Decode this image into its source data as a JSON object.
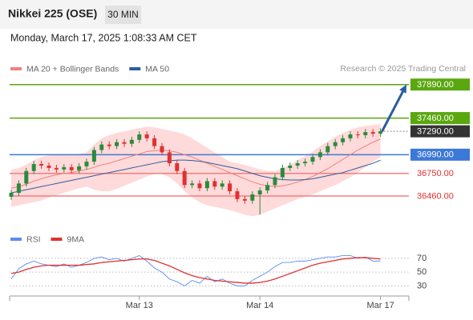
{
  "header": {
    "title": "Nikkei 225 (OSE)",
    "interval": "30 MIN",
    "timestamp": "Monday, March 17, 2025 1:08:33 AM CET"
  },
  "source": "Research © 2025 Trading Central",
  "chart_data": [
    {
      "type": "candlestick",
      "categories": [
        null,
        null,
        null,
        null,
        null,
        null,
        null,
        null,
        null,
        null,
        null,
        null,
        null,
        null,
        null,
        null,
        null,
        "Mar 13",
        null,
        null,
        null,
        null,
        null,
        null,
        null,
        null,
        null,
        null,
        null,
        null,
        null,
        null,
        null,
        "Mar 14",
        null,
        null,
        null,
        null,
        null,
        null,
        null,
        null,
        null,
        null,
        null,
        null,
        null,
        null,
        null,
        "Mar 17"
      ],
      "open": [
        36450,
        36500,
        36620,
        36780,
        36870,
        36850,
        36820,
        36800,
        36830,
        36790,
        36840,
        36900,
        37050,
        37120,
        37100,
        37150,
        37130,
        37180,
        37250,
        37200,
        37100,
        37020,
        36880,
        36780,
        36600,
        36620,
        36560,
        36650,
        36580,
        36620,
        36520,
        36420,
        36400,
        36480,
        36530,
        36600,
        36700,
        36820,
        36850,
        36880,
        36900,
        36960,
        37020,
        37100,
        37150,
        37200,
        37250,
        37240,
        37280,
        37260
      ],
      "high": [
        36540,
        36660,
        36820,
        36910,
        36910,
        36890,
        36860,
        36870,
        36870,
        36880,
        36940,
        37090,
        37160,
        37160,
        37190,
        37190,
        37220,
        37290,
        37290,
        37240,
        37140,
        37060,
        36920,
        36820,
        36660,
        36660,
        36690,
        36690,
        36660,
        36660,
        36560,
        36460,
        36520,
        36570,
        36640,
        36740,
        36860,
        36890,
        36920,
        36940,
        37000,
        37060,
        37140,
        37190,
        37240,
        37290,
        37290,
        37320,
        37320,
        37330
      ],
      "low": [
        36410,
        36460,
        36580,
        36740,
        36810,
        36780,
        36760,
        36760,
        36750,
        36750,
        36800,
        36860,
        37010,
        37060,
        37060,
        37090,
        37090,
        37140,
        37160,
        37060,
        36980,
        36840,
        36740,
        36560,
        36560,
        36520,
        36520,
        36540,
        36540,
        36480,
        36380,
        36360,
        36360,
        36220,
        36490,
        36560,
        36660,
        36780,
        36810,
        36840,
        36860,
        36920,
        36980,
        37060,
        37110,
        37160,
        37200,
        37200,
        37220,
        37220
      ],
      "close": [
        36500,
        36620,
        36780,
        36870,
        36850,
        36820,
        36800,
        36830,
        36790,
        36840,
        36900,
        37050,
        37120,
        37100,
        37150,
        37130,
        37180,
        37250,
        37200,
        37100,
        37020,
        36880,
        36780,
        36600,
        36620,
        36560,
        36650,
        36580,
        36620,
        36520,
        36420,
        36400,
        36480,
        36530,
        36600,
        36700,
        36820,
        36850,
        36880,
        36900,
        36960,
        37020,
        37100,
        37150,
        37200,
        37250,
        37240,
        37280,
        37260,
        37290
      ],
      "up_color": "#2b8a3e",
      "down_color": "#e03131",
      "bands": {
        "color": "#ffd3d3",
        "upper": [
          36800,
          36820,
          36860,
          36920,
          36960,
          36980,
          36990,
          37000,
          36990,
          37000,
          37020,
          37120,
          37200,
          37240,
          37270,
          37290,
          37310,
          37330,
          37350,
          37340,
          37320,
          37300,
          37280,
          37250,
          37200,
          37140,
          37080,
          37020,
          36960,
          36900,
          36880,
          36860,
          36830,
          36800,
          36780,
          36780,
          36820,
          36860,
          36920,
          36970,
          37030,
          37100,
          37160,
          37220,
          37270,
          37310,
          37340,
          37360,
          37370,
          37380
        ],
        "lower": [
          36320,
          36340,
          36360,
          36380,
          36400,
          36440,
          36470,
          36500,
          36530,
          36560,
          36580,
          36540,
          36520,
          36520,
          36550,
          36590,
          36630,
          36670,
          36710,
          36740,
          36740,
          36700,
          36620,
          36520,
          36440,
          36380,
          36340,
          36320,
          36300,
          36280,
          36250,
          36220,
          36200,
          36220,
          36260,
          36300,
          36340,
          36380,
          36420,
          36450,
          36480,
          36520,
          36560,
          36600,
          36650,
          36700,
          36760,
          36830,
          36900,
          36960
        ]
      },
      "series": [
        {
          "name": "MA 20 + Bollinger Bands",
          "color": "#f08080",
          "values": [
            36560,
            36580,
            36610,
            36650,
            36680,
            36710,
            36730,
            36750,
            36760,
            36780,
            36800,
            36830,
            36860,
            36880,
            36910,
            36940,
            36970,
            37000,
            37030,
            37040,
            37050,
            37040,
            37020,
            36990,
            36960,
            36920,
            36880,
            36840,
            36800,
            36760,
            36720,
            36680,
            36640,
            36610,
            36590,
            36580,
            36590,
            36610,
            36640,
            36670,
            36710,
            36760,
            36810,
            36870,
            36930,
            36990,
            37050,
            37100,
            37150,
            37190
          ]
        },
        {
          "name": "MA 50",
          "color": "#2a5d9f",
          "values": [
            36500,
            36520,
            36540,
            36560,
            36580,
            36600,
            36620,
            36640,
            36660,
            36680,
            36700,
            36720,
            36740,
            36760,
            36780,
            36800,
            36820,
            36840,
            36860,
            36880,
            36900,
            36910,
            36920,
            36920,
            36915,
            36905,
            36890,
            36870,
            36850,
            36830,
            36810,
            36780,
            36750,
            36720,
            36700,
            36680,
            36670,
            36665,
            36665,
            36670,
            36680,
            36700,
            36720,
            36740,
            36760,
            36790,
            36820,
            36850,
            36880,
            36920
          ]
        }
      ],
      "ylim": [
        36100,
        38000
      ],
      "levels": [
        {
          "value": 37890,
          "label": "37890.00",
          "color": "#5aa70f",
          "filled": true,
          "line": "solid"
        },
        {
          "value": 37460,
          "label": "37460.00",
          "color": "#5aa70f",
          "filled": true,
          "line": "solid"
        },
        {
          "value": 37290,
          "label": "37290.00",
          "color": "#333333",
          "filled": true,
          "line": "dotted"
        },
        {
          "value": 36990,
          "label": "36990.00",
          "color": "#3c78d8",
          "filled": true,
          "line": "solid"
        },
        {
          "value": 36750,
          "label": "36750.00",
          "color": "#f08080",
          "filled": false,
          "line": "solid"
        },
        {
          "value": 36460,
          "label": "36460.00",
          "color": "#f08080",
          "filled": false,
          "line": "solid"
        }
      ]
    },
    {
      "type": "line",
      "series": [
        {
          "name": "RSI",
          "color": "#5b8def",
          "values": [
            40,
            55,
            62,
            66,
            62,
            60,
            58,
            62,
            57,
            60,
            64,
            70,
            72,
            68,
            70,
            66,
            70,
            74,
            66,
            56,
            50,
            40,
            36,
            30,
            38,
            34,
            44,
            36,
            40,
            34,
            30,
            30,
            38,
            44,
            50,
            58,
            64,
            64,
            66,
            66,
            68,
            70,
            72,
            72,
            74,
            74,
            70,
            72,
            66,
            66
          ]
        },
        {
          "name": "9MA",
          "color": "#e03131",
          "values": [
            48,
            50,
            54,
            57,
            59,
            60,
            60,
            60,
            60,
            60,
            61,
            62,
            64,
            65,
            66,
            67,
            68,
            69,
            69,
            67,
            63,
            59,
            54,
            49,
            45,
            42,
            40,
            38,
            37,
            36,
            35,
            34,
            34,
            35,
            37,
            40,
            44,
            48,
            52,
            56,
            60,
            63,
            65,
            67,
            69,
            70,
            71,
            71,
            70,
            69
          ]
        }
      ],
      "ylim": [
        20,
        85
      ],
      "yticks": [
        30,
        50,
        70
      ],
      "grid": true
    }
  ]
}
